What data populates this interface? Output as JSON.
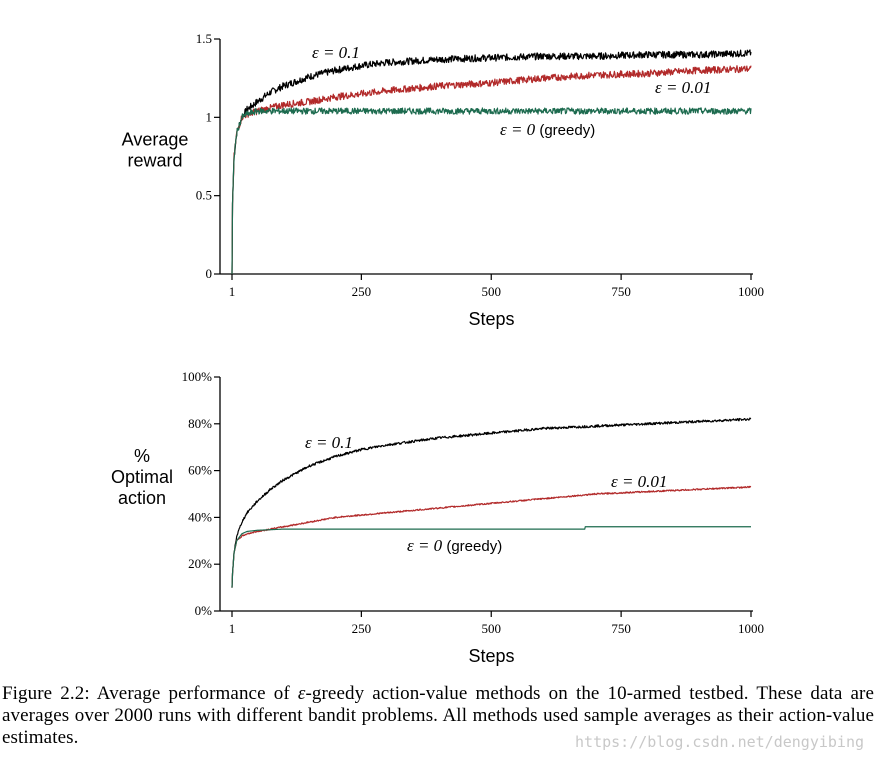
{
  "chart_data": [
    {
      "type": "line",
      "id": "reward",
      "ylabel": [
        "Average",
        "reward"
      ],
      "xlabel": "Steps",
      "xlim": [
        1,
        1000
      ],
      "ylim": [
        0,
        1.5
      ],
      "xticks": [
        1,
        250,
        500,
        750,
        1000
      ],
      "xtick_labels": [
        "1",
        "250",
        "500",
        "750",
        "1000"
      ],
      "yticks": [
        0,
        0.5,
        1,
        1.5
      ],
      "ytick_labels": [
        "0",
        "0.5",
        "1",
        "1.5"
      ],
      "grid": false,
      "series": [
        {
          "name": "ε = 0.1",
          "label": "ε = 0.1",
          "label_suffix": "",
          "color": "#000000",
          "noise": 0.022,
          "x": [
            1,
            2,
            5,
            10,
            20,
            30,
            50,
            75,
            100,
            150,
            200,
            250,
            300,
            400,
            500,
            600,
            700,
            800,
            900,
            1000
          ],
          "y": [
            0.0,
            0.45,
            0.75,
            0.9,
            1.0,
            1.05,
            1.1,
            1.16,
            1.2,
            1.26,
            1.3,
            1.33,
            1.35,
            1.37,
            1.38,
            1.39,
            1.39,
            1.4,
            1.4,
            1.41
          ]
        },
        {
          "name": "ε = 0.01",
          "label": "ε = 0.01",
          "label_suffix": "",
          "color": "#b22a2a",
          "noise": 0.022,
          "x": [
            1,
            2,
            5,
            10,
            20,
            30,
            50,
            75,
            100,
            150,
            200,
            250,
            300,
            400,
            500,
            600,
            700,
            800,
            900,
            1000
          ],
          "y": [
            0.0,
            0.45,
            0.75,
            0.9,
            1.0,
            1.02,
            1.04,
            1.06,
            1.08,
            1.1,
            1.13,
            1.15,
            1.17,
            1.2,
            1.22,
            1.25,
            1.27,
            1.28,
            1.3,
            1.31
          ]
        },
        {
          "name": "ε = 0 (greedy)",
          "label": "ε = 0",
          "label_suffix": "(greedy)",
          "color": "#1d6b4f",
          "noise": 0.02,
          "x": [
            1,
            2,
            5,
            10,
            20,
            30,
            50,
            100,
            200,
            400,
            600,
            800,
            1000
          ],
          "y": [
            0.0,
            0.45,
            0.75,
            0.9,
            1.0,
            1.02,
            1.04,
            1.04,
            1.04,
            1.04,
            1.04,
            1.04,
            1.04
          ]
        }
      ]
    },
    {
      "type": "line",
      "id": "optimal",
      "ylabel": [
        "%",
        "Optimal",
        "action"
      ],
      "xlabel": "Steps",
      "xlim": [
        1,
        1000
      ],
      "ylim": [
        0,
        100
      ],
      "xticks": [
        1,
        250,
        500,
        750,
        1000
      ],
      "xtick_labels": [
        "1",
        "250",
        "500",
        "750",
        "1000"
      ],
      "yticks": [
        0,
        20,
        40,
        60,
        80,
        100
      ],
      "ytick_labels": [
        "0%",
        "20%",
        "40%",
        "60%",
        "80%",
        "100%"
      ],
      "grid": false,
      "series": [
        {
          "name": "ε = 0.1",
          "label": "ε = 0.1",
          "label_suffix": "",
          "color": "#000000",
          "noise": 0.5,
          "x": [
            1,
            2,
            5,
            10,
            20,
            30,
            50,
            75,
            100,
            150,
            200,
            250,
            300,
            400,
            500,
            600,
            700,
            800,
            900,
            1000
          ],
          "y": [
            10,
            16,
            25,
            32,
            38,
            42,
            47,
            52,
            56,
            62,
            66,
            69,
            71,
            74,
            76,
            78,
            79,
            80,
            81,
            82
          ]
        },
        {
          "name": "ε = 0.01",
          "label": "ε = 0.01",
          "label_suffix": "",
          "color": "#b22a2a",
          "noise": 0.3,
          "x": [
            1,
            2,
            5,
            10,
            20,
            30,
            50,
            100,
            150,
            200,
            250,
            300,
            400,
            500,
            600,
            700,
            800,
            900,
            1000
          ],
          "y": [
            10,
            16,
            25,
            30,
            32,
            33,
            34,
            36,
            38,
            40,
            41,
            42,
            44,
            46,
            48,
            50,
            51,
            52,
            53
          ]
        },
        {
          "name": "ε = 0 (greedy)",
          "label": "ε = 0",
          "label_suffix": "(greedy)",
          "color": "#1d6b4f",
          "noise": 0,
          "x": [
            1,
            2,
            5,
            10,
            20,
            30,
            50,
            100,
            200,
            300,
            400,
            500,
            600,
            680,
            681,
            800,
            1000
          ],
          "y": [
            10,
            16,
            25,
            30,
            33,
            34,
            34.5,
            35,
            35,
            35,
            35,
            35,
            35,
            35,
            36,
            36,
            36
          ]
        }
      ]
    }
  ],
  "caption": {
    "prefix": "Figure 2.2:",
    "text_pre": "Average performance of",
    "epsilon": "ε",
    "text_post": "-greedy action-value methods on the 10-armed testbed. These data are averages over 2000 runs with different bandit problems. All methods used sample averages as their action-value estimates."
  },
  "watermark": "https://blog.csdn.net/dengyibing"
}
